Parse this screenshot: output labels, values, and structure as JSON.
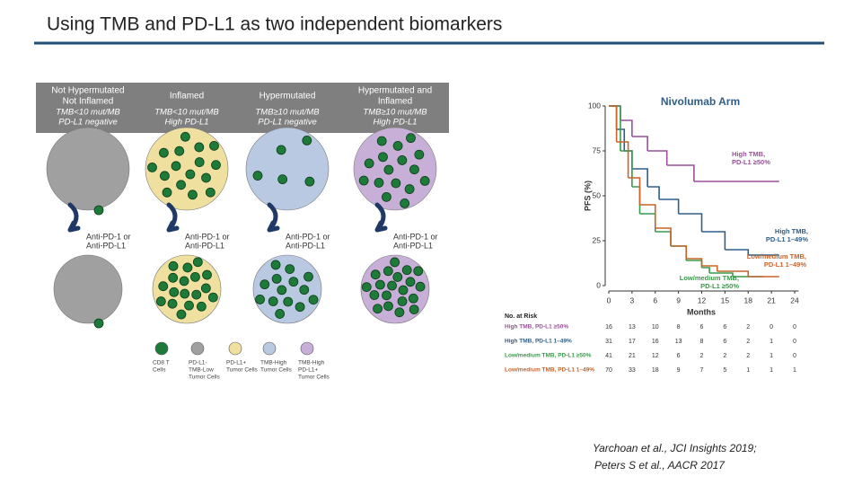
{
  "title": "Using TMB and PD-L1 as two independent biomarkers",
  "diagram": {
    "columns": [
      {
        "heading": [
          "Not Hypermutated",
          "Not Inflamed"
        ],
        "criteria": [
          "TMB<10 mut/MB",
          "PD-L1 negative"
        ],
        "treatment": [
          "Anti-PD-1 or",
          "Anti-PD-L1"
        ]
      },
      {
        "heading": [
          "Inflamed"
        ],
        "criteria": [
          "TMB<10 mut/MB",
          "High PD-L1"
        ],
        "treatment": [
          "Anti-PD-1 or",
          "Anti-PD-L1"
        ]
      },
      {
        "heading": [
          "Hypermutated"
        ],
        "criteria": [
          "TMB≥10 mut/MB",
          "PD-L1 negative"
        ],
        "treatment": [
          "Anti-PD-1 or",
          "Anti-PD-L1"
        ]
      },
      {
        "heading": [
          "Hypermutated and",
          "Inflamed"
        ],
        "criteria": [
          "TMB≥10 mut/MB",
          "High PD-L1"
        ],
        "treatment": [
          "Anti-PD-1 or",
          "Anti-PD-L1"
        ]
      }
    ],
    "legend": [
      {
        "label": [
          "CD8 T",
          "Cells"
        ]
      },
      {
        "label": [
          "PD-L1-",
          "TMB-Low",
          "Tumor Cells"
        ]
      },
      {
        "label": [
          "PD-L1+",
          "Tumor Cells"
        ]
      },
      {
        "label": [
          "TMB-High",
          "Tumor Cells"
        ]
      },
      {
        "label": [
          "TMB-High",
          "PD-L1+",
          "Tumor Cells"
        ]
      }
    ]
  },
  "chart_data": {
    "type": "step",
    "title": "Nivolumab Arm",
    "ylabel": "PFS (%)",
    "xlabel": "Months",
    "xlim": [
      0,
      24.5
    ],
    "ylim": [
      0,
      100
    ],
    "xticks": [
      0,
      3,
      6,
      9,
      12,
      15,
      18,
      21,
      24
    ],
    "yticks": [
      0,
      25,
      50,
      75,
      100
    ],
    "series": [
      {
        "name": "High TMB, PD-L1 ≥50%",
        "label_lines": [
          "High TMB,",
          "PD-L1 ≥50%"
        ],
        "color": "#9b4f9b",
        "x": [
          0,
          1.5,
          3,
          5,
          7.5,
          11,
          22
        ],
        "values": [
          100,
          92,
          83,
          75,
          67,
          58,
          58
        ]
      },
      {
        "name": "High TMB, PD-L1 1–49%",
        "label_lines": [
          "High TMB,",
          "PD-L1 1–49%"
        ],
        "color": "#2f5f8a",
        "x": [
          0,
          1,
          2,
          3,
          5,
          6.5,
          9,
          12,
          15,
          18,
          22
        ],
        "values": [
          100,
          87,
          75,
          65,
          55,
          48,
          40,
          30,
          20,
          17,
          17
        ]
      },
      {
        "name": "Low/medium TMB, PD-L1 ≥50%",
        "label_lines": [
          "Low/medium TMB,",
          "PD-L1 ≥50%"
        ],
        "color": "#3a9a4a",
        "x": [
          0,
          1.5,
          3,
          4,
          6,
          8,
          10,
          12,
          13,
          16,
          20
        ],
        "values": [
          100,
          75,
          55,
          40,
          30,
          22,
          14,
          10,
          7,
          5,
          5
        ]
      },
      {
        "name": "Low/medium TMB, PD-L1 1–49%",
        "label_lines": [
          "Low/medium TMB,",
          "PD-L1 1–49%"
        ],
        "color": "#c8632a",
        "x": [
          0,
          1,
          2.5,
          4,
          6,
          8,
          10,
          12,
          14,
          18,
          22
        ],
        "values": [
          100,
          80,
          60,
          45,
          32,
          22,
          15,
          11,
          8,
          5,
          5
        ]
      }
    ],
    "risk_table": {
      "title": "No. at Risk",
      "rows": [
        [
          16,
          13,
          10,
          8,
          6,
          6,
          2,
          0,
          0
        ],
        [
          31,
          17,
          16,
          13,
          8,
          6,
          2,
          1,
          0
        ],
        [
          41,
          21,
          12,
          6,
          2,
          2,
          2,
          1,
          0
        ],
        [
          70,
          33,
          18,
          9,
          7,
          5,
          1,
          1,
          1
        ]
      ]
    }
  },
  "citation": [
    "Yarchoan et al., JCI Insights 2019;",
    "Peters S et al., AACR 2017"
  ]
}
